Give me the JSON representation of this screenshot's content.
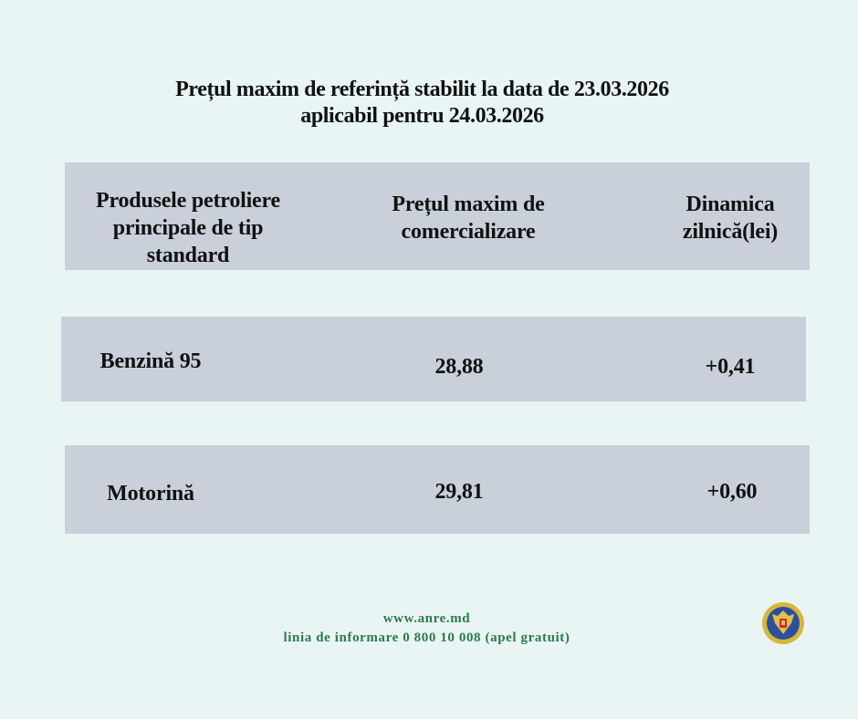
{
  "title": {
    "line1": "Prețul maxim de referință stabilit la data de 23.03.2026",
    "line2": "aplicabil pentru 24.03.2026"
  },
  "table": {
    "headers": [
      [
        "Produsele petroliere",
        "principale de tip",
        "standard"
      ],
      [
        "Prețul maxim de",
        "comercializare"
      ],
      [
        "Dinamica",
        "zilnică(lei)"
      ]
    ],
    "rows": [
      {
        "product": "Benzină 95",
        "price": "28,88",
        "change": "+0,41"
      },
      {
        "product": "Motorină",
        "price": "29,81",
        "change": "+0,60"
      }
    ]
  },
  "footer": {
    "website": "www.anre.md",
    "hotline": "linia de informare 0 800 10 008 (apel gratuit)"
  },
  "logo": {
    "icon": "moldova-coat-of-arms-seal"
  },
  "colors": {
    "background": "#e9f5f5",
    "box": "#c9d0da",
    "footer_text": "#2e7a4c"
  }
}
